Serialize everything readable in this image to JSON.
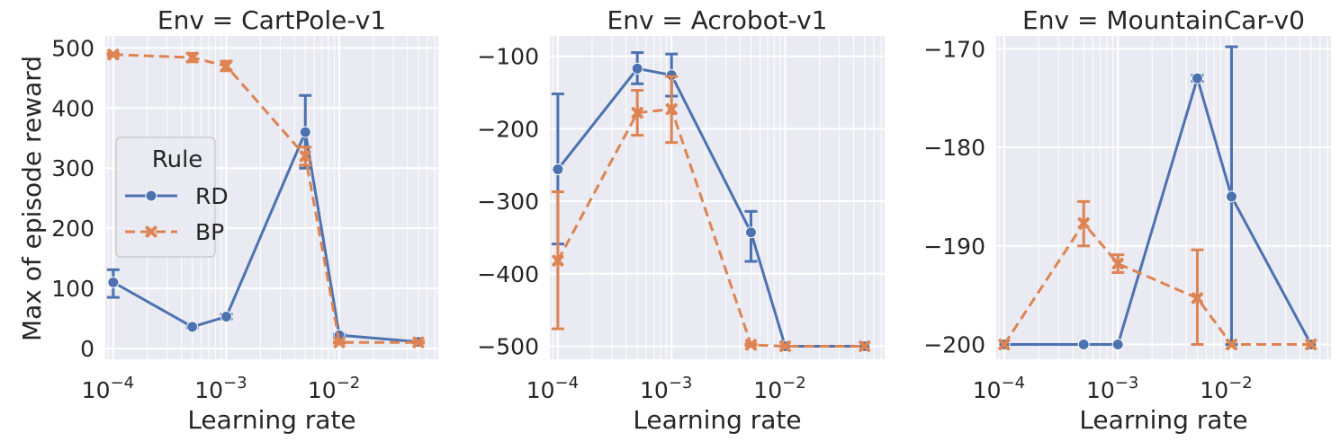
{
  "colors": {
    "RD": "#4c72b0",
    "BP": "#dd8452"
  },
  "figure": {
    "ylabel": "Max of episode reward"
  },
  "legend": {
    "title": "Rule",
    "entries": [
      "RD",
      "BP"
    ],
    "placement": "center-left of first panel"
  },
  "chart_data": [
    {
      "type": "line",
      "title": "Env = CartPole-v1",
      "xlabel": "Learning rate",
      "ylabel": "Max of episode reward",
      "xscale": "log",
      "xlim": [
        8.5e-05,
        0.075
      ],
      "ylim": [
        -18,
        520
      ],
      "xticks": [
        {
          "value": 0.0001,
          "base": "10",
          "exp": "−4"
        },
        {
          "value": 0.001,
          "base": "10",
          "exp": "−3"
        },
        {
          "value": 0.01,
          "base": "10",
          "exp": "−2"
        }
      ],
      "yticks": [
        {
          "value": 0,
          "label": "0"
        },
        {
          "value": 100,
          "label": "100"
        },
        {
          "value": 200,
          "label": "200"
        },
        {
          "value": 300,
          "label": "300"
        },
        {
          "value": 400,
          "label": "400"
        },
        {
          "value": 500,
          "label": "500"
        }
      ],
      "x": [
        0.0001,
        0.0005,
        0.001,
        0.005,
        0.01,
        0.05
      ],
      "series": [
        {
          "name": "RD",
          "values": [
            110,
            36,
            53,
            360,
            22,
            11
          ],
          "err_low": [
            85,
            34,
            49,
            300,
            20,
            10
          ],
          "err_high": [
            131,
            38,
            57,
            421,
            24,
            12
          ]
        },
        {
          "name": "BP",
          "values": [
            489,
            484,
            470,
            320,
            10,
            10
          ],
          "err_low": [
            487,
            477,
            462,
            305,
            9,
            9
          ],
          "err_high": [
            491,
            491,
            478,
            335,
            11,
            11
          ]
        }
      ]
    },
    {
      "type": "line",
      "title": "Env = Acrobot-v1",
      "xlabel": "Learning rate",
      "ylabel": "",
      "xscale": "log",
      "xlim": [
        8.5e-05,
        0.075
      ],
      "ylim": [
        -518,
        -72
      ],
      "xticks": [
        {
          "value": 0.0001,
          "base": "10",
          "exp": "−4"
        },
        {
          "value": 0.001,
          "base": "10",
          "exp": "−3"
        },
        {
          "value": 0.01,
          "base": "10",
          "exp": "−2"
        }
      ],
      "yticks": [
        {
          "value": -100,
          "label": "−100"
        },
        {
          "value": -200,
          "label": "−200"
        },
        {
          "value": -300,
          "label": "−300"
        },
        {
          "value": -400,
          "label": "−400"
        },
        {
          "value": -500,
          "label": "−500"
        }
      ],
      "x": [
        0.0001,
        0.0005,
        0.001,
        0.005,
        0.01,
        0.05
      ],
      "series": [
        {
          "name": "RD",
          "values": [
            -256,
            -117,
            -126,
            -343,
            -500,
            -500
          ],
          "err_low": [
            -359,
            -138,
            -155,
            -383,
            -500,
            -500
          ],
          "err_high": [
            -152,
            -95,
            -97,
            -314,
            -500,
            -500
          ]
        },
        {
          "name": "BP",
          "values": [
            -382,
            -178,
            -173,
            -498,
            -500,
            -500
          ],
          "err_low": [
            -476,
            -209,
            -219,
            -499,
            -500,
            -500
          ],
          "err_high": [
            -287,
            -147,
            -128,
            -497,
            -500,
            -500
          ]
        }
      ]
    },
    {
      "type": "line",
      "title": "Env = MountainCar-v0",
      "xlabel": "Learning rate",
      "ylabel": "",
      "xscale": "log",
      "xlim": [
        8.5e-05,
        0.075
      ],
      "ylim": [
        -201.5,
        -168.7
      ],
      "xticks": [
        {
          "value": 0.0001,
          "base": "10",
          "exp": "−4"
        },
        {
          "value": 0.001,
          "base": "10",
          "exp": "−3"
        },
        {
          "value": 0.01,
          "base": "10",
          "exp": "−2"
        }
      ],
      "yticks": [
        {
          "value": -170,
          "label": "−170"
        },
        {
          "value": -180,
          "label": "−180"
        },
        {
          "value": -190,
          "label": "−190"
        },
        {
          "value": -200,
          "label": "−200"
        }
      ],
      "x": [
        0.0001,
        0.0005,
        0.001,
        0.005,
        0.01,
        0.05
      ],
      "series": [
        {
          "name": "RD",
          "values": [
            -200,
            -200,
            -200,
            -173,
            -185,
            -200
          ],
          "err_low": [
            -200,
            -200,
            -200,
            -173.3,
            -200,
            -200
          ],
          "err_high": [
            -200,
            -200,
            -200,
            -172.7,
            -169.8,
            -200
          ]
        },
        {
          "name": "BP",
          "values": [
            -200,
            -187.7,
            -191.8,
            -195.3,
            -200,
            -200
          ],
          "err_low": [
            -200,
            -190,
            -192.7,
            -200,
            -200,
            -200
          ],
          "err_high": [
            -200,
            -185.5,
            -190.9,
            -190.4,
            -200,
            -200
          ]
        }
      ]
    }
  ]
}
